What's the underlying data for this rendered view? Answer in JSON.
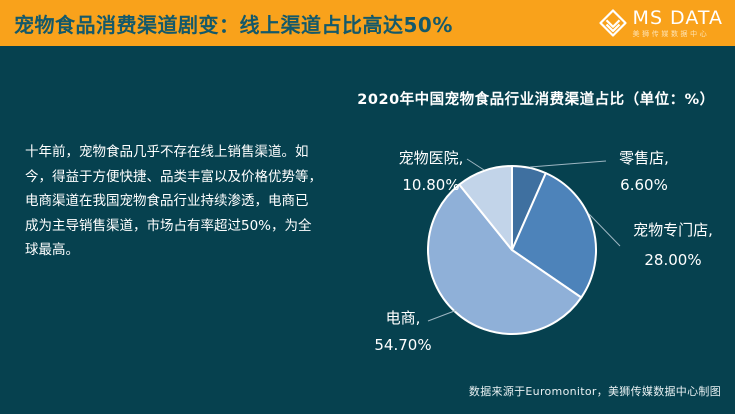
{
  "header": {
    "title": "宠物食品消费渠道剧变：线上渠道占比高达50%",
    "logo_text": "MS DATA",
    "logo_subtext": "美狮传媒数据中心"
  },
  "body_paragraph": "十年前，宠物食品几乎不存在线上销售渠道。如\n今，得益于方便快捷、品类丰富以及价格优势等，\n电商渠道在我国宠物食品行业持续渗透，电商已\n成为主导销售渠道，市场占有率超过50%，为全\n球最高。",
  "chart_data": {
    "type": "pie",
    "title": "2020年中国宠物食品行业消费渠道占比（单位：%）",
    "unit": "%",
    "start_angle_deg": 0,
    "direction": "clockwise",
    "legend": "none",
    "labels_position": "outside-with-leader-lines",
    "slices": [
      {
        "name": "零售店",
        "value": 6.6,
        "label": "零售店,",
        "value_label": "6.60%",
        "color": "#3f70a0"
      },
      {
        "name": "宠物专门店",
        "value": 28.0,
        "label": "宠物专门店,",
        "value_label": "28.00%",
        "color": "#4d83ba"
      },
      {
        "name": "电商",
        "value": 54.7,
        "label": "电商,",
        "value_label": "54.70%",
        "color": "#8fb0d8"
      },
      {
        "name": "宠物医院",
        "value": 10.8,
        "label": "宠物医院,",
        "value_label": "10.80%",
        "color": "#c2d4e9"
      }
    ],
    "source_note": "数据来源于Euromonitor，美狮传媒数据中心制图"
  },
  "colors": {
    "background": "#06414f",
    "header_bar": "#f9a21b",
    "header_text": "#14596a",
    "body_text": "#ffffff",
    "slice_stroke": "#ffffff",
    "leader_line": "#9db6c2"
  }
}
